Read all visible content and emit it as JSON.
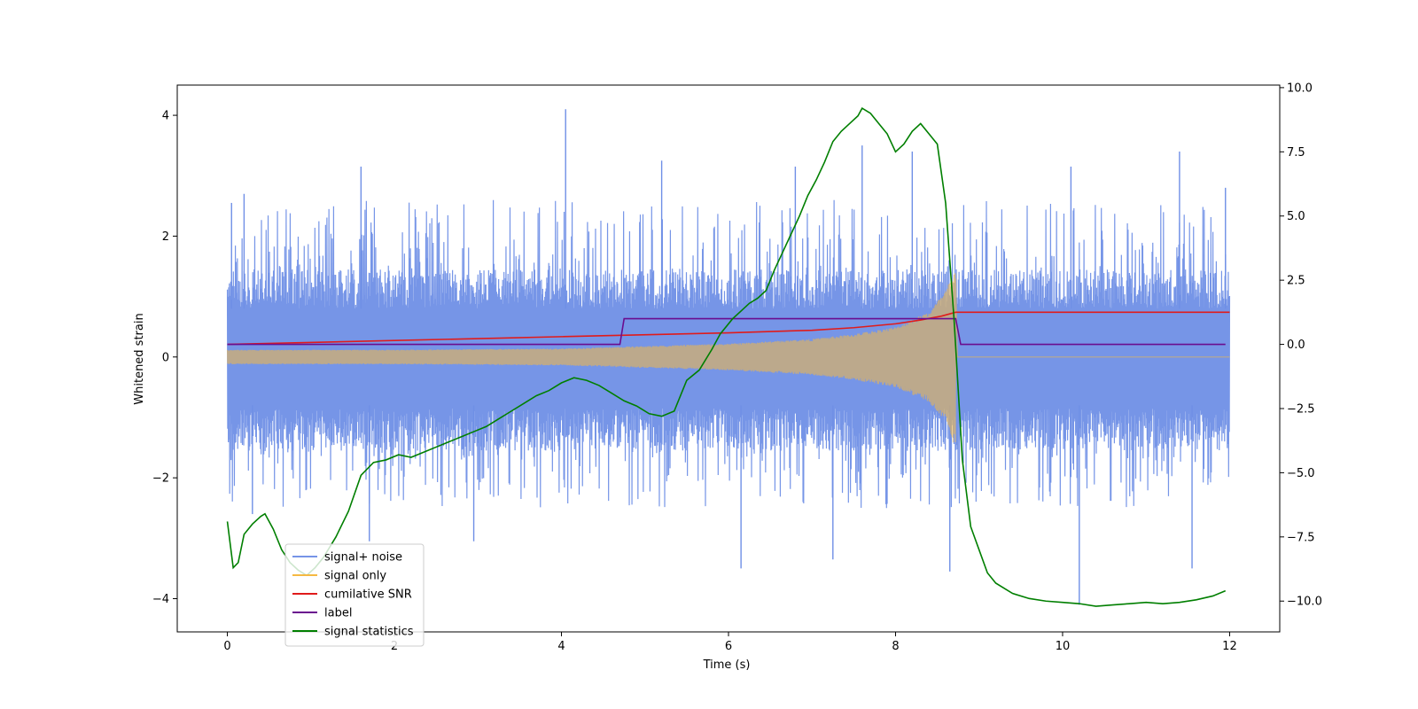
{
  "chart_data": {
    "type": "line",
    "xlabel": "Time (s)",
    "ylabel": "Whitened strain",
    "xlim": [
      -0.6,
      12.6
    ],
    "ylim": [
      -4.55,
      4.5
    ],
    "y2lim": [
      -11.2,
      10.1
    ],
    "x_ticks": [
      "0",
      "2",
      "4",
      "6",
      "8",
      "10",
      "12"
    ],
    "y_ticks": [
      "4",
      "2",
      "0",
      "−2",
      "−4"
    ],
    "y2_ticks": [
      "10.0",
      "7.5",
      "5.0",
      "2.5",
      "0.0",
      "−2.5",
      "−5.0",
      "−7.5",
      "−10.0"
    ],
    "legend_position": "lower-left",
    "series": [
      {
        "name": "signal+ noise",
        "axis": "left",
        "color": "#6f8fe6",
        "description": "whitened noise with band roughly between -1.8 and 2.0, spikes up to 4.1 and down to -4.1",
        "baseline": 0.0,
        "band_top": 1.45,
        "band_bottom": -1.55,
        "notable_peaks": [
          [
            0.05,
            2.55
          ],
          [
            0.2,
            2.7
          ],
          [
            1.6,
            3.15
          ],
          [
            4.05,
            4.1
          ],
          [
            5.2,
            3.25
          ],
          [
            6.8,
            3.15
          ],
          [
            7.6,
            3.5
          ],
          [
            8.2,
            3.4
          ],
          [
            10.1,
            3.15
          ],
          [
            11.4,
            3.4
          ],
          [
            11.95,
            2.8
          ]
        ],
        "notable_troughs": [
          [
            0.3,
            -2.6
          ],
          [
            1.7,
            -3.05
          ],
          [
            2.95,
            -3.05
          ],
          [
            6.15,
            -3.5
          ],
          [
            7.25,
            -3.35
          ],
          [
            8.65,
            -3.55
          ],
          [
            10.2,
            -4.1
          ],
          [
            11.55,
            -3.5
          ]
        ]
      },
      {
        "name": "signal only",
        "axis": "left",
        "color": "#f5b942",
        "description": "chirp waveform growing in amplitude until merger near 8.7 s, then flat",
        "start": 0.0,
        "merger_time": 8.72,
        "amplitude_envelope": [
          [
            0.0,
            0.12
          ],
          [
            2.0,
            0.12
          ],
          [
            4.0,
            0.14
          ],
          [
            6.0,
            0.22
          ],
          [
            7.0,
            0.3
          ],
          [
            7.5,
            0.38
          ],
          [
            8.0,
            0.5
          ],
          [
            8.4,
            0.75
          ],
          [
            8.6,
            1.1
          ],
          [
            8.7,
            1.45
          ]
        ],
        "post_merger_value": 0.0,
        "end": 12.0
      },
      {
        "name": "cumilative SNR",
        "axis": "right",
        "color": "#e01b1b",
        "x": [
          0.0,
          2.0,
          4.0,
          6.0,
          7.0,
          7.5,
          8.0,
          8.3,
          8.55,
          8.72,
          12.0
        ],
        "values": [
          0.0,
          0.15,
          0.3,
          0.45,
          0.55,
          0.65,
          0.8,
          0.95,
          1.1,
          1.25,
          1.25
        ]
      },
      {
        "name": "label",
        "axis": "right",
        "color": "#6a0d8f",
        "x": [
          0.0,
          4.7,
          4.75,
          8.72,
          8.78,
          11.95
        ],
        "values": [
          0.0,
          0.0,
          1.0,
          1.0,
          0.0,
          0.0
        ]
      },
      {
        "name": "signal statistics",
        "axis": "right",
        "color": "#007f00",
        "x": [
          0.0,
          0.07,
          0.13,
          0.2,
          0.3,
          0.4,
          0.45,
          0.55,
          0.65,
          0.75,
          0.85,
          0.95,
          1.05,
          1.15,
          1.3,
          1.45,
          1.6,
          1.75,
          1.9,
          2.05,
          2.2,
          2.35,
          2.5,
          2.65,
          2.8,
          2.95,
          3.1,
          3.25,
          3.4,
          3.55,
          3.7,
          3.85,
          4.0,
          4.15,
          4.3,
          4.45,
          4.6,
          4.75,
          4.9,
          5.05,
          5.2,
          5.35,
          5.5,
          5.65,
          5.8,
          5.9,
          6.05,
          6.15,
          6.25,
          6.35,
          6.45,
          6.55,
          6.65,
          6.75,
          6.85,
          6.95,
          7.05,
          7.15,
          7.25,
          7.35,
          7.45,
          7.55,
          7.6,
          7.7,
          7.8,
          7.9,
          8.0,
          8.1,
          8.2,
          8.3,
          8.4,
          8.5,
          8.6,
          8.7,
          8.8,
          8.9,
          9.0,
          9.1,
          9.2,
          9.4,
          9.6,
          9.8,
          10.0,
          10.2,
          10.4,
          10.6,
          10.8,
          11.0,
          11.2,
          11.4,
          11.6,
          11.8,
          11.95
        ],
        "values": [
          -6.9,
          -8.7,
          -8.5,
          -7.4,
          -7.0,
          -6.7,
          -6.6,
          -7.2,
          -8.0,
          -8.5,
          -8.8,
          -9.0,
          -8.7,
          -8.3,
          -7.5,
          -6.5,
          -5.1,
          -4.6,
          -4.5,
          -4.3,
          -4.4,
          -4.2,
          -4.0,
          -3.8,
          -3.6,
          -3.4,
          -3.2,
          -2.9,
          -2.6,
          -2.3,
          -2.0,
          -1.8,
          -1.5,
          -1.3,
          -1.4,
          -1.6,
          -1.9,
          -2.2,
          -2.4,
          -2.7,
          -2.8,
          -2.6,
          -1.4,
          -1.0,
          -0.2,
          0.4,
          1.0,
          1.3,
          1.6,
          1.8,
          2.1,
          2.9,
          3.6,
          4.3,
          5.0,
          5.8,
          6.4,
          7.1,
          7.9,
          8.3,
          8.6,
          8.9,
          9.2,
          9.0,
          8.6,
          8.2,
          7.5,
          7.8,
          8.3,
          8.6,
          8.2,
          7.8,
          5.5,
          1.0,
          -4.5,
          -7.1,
          -8.0,
          -8.9,
          -9.3,
          -9.7,
          -9.9,
          -10.0,
          -10.05,
          -10.1,
          -10.2,
          -10.15,
          -10.1,
          -10.05,
          -10.1,
          -10.05,
          -9.95,
          -9.8,
          -9.6
        ]
      }
    ]
  }
}
